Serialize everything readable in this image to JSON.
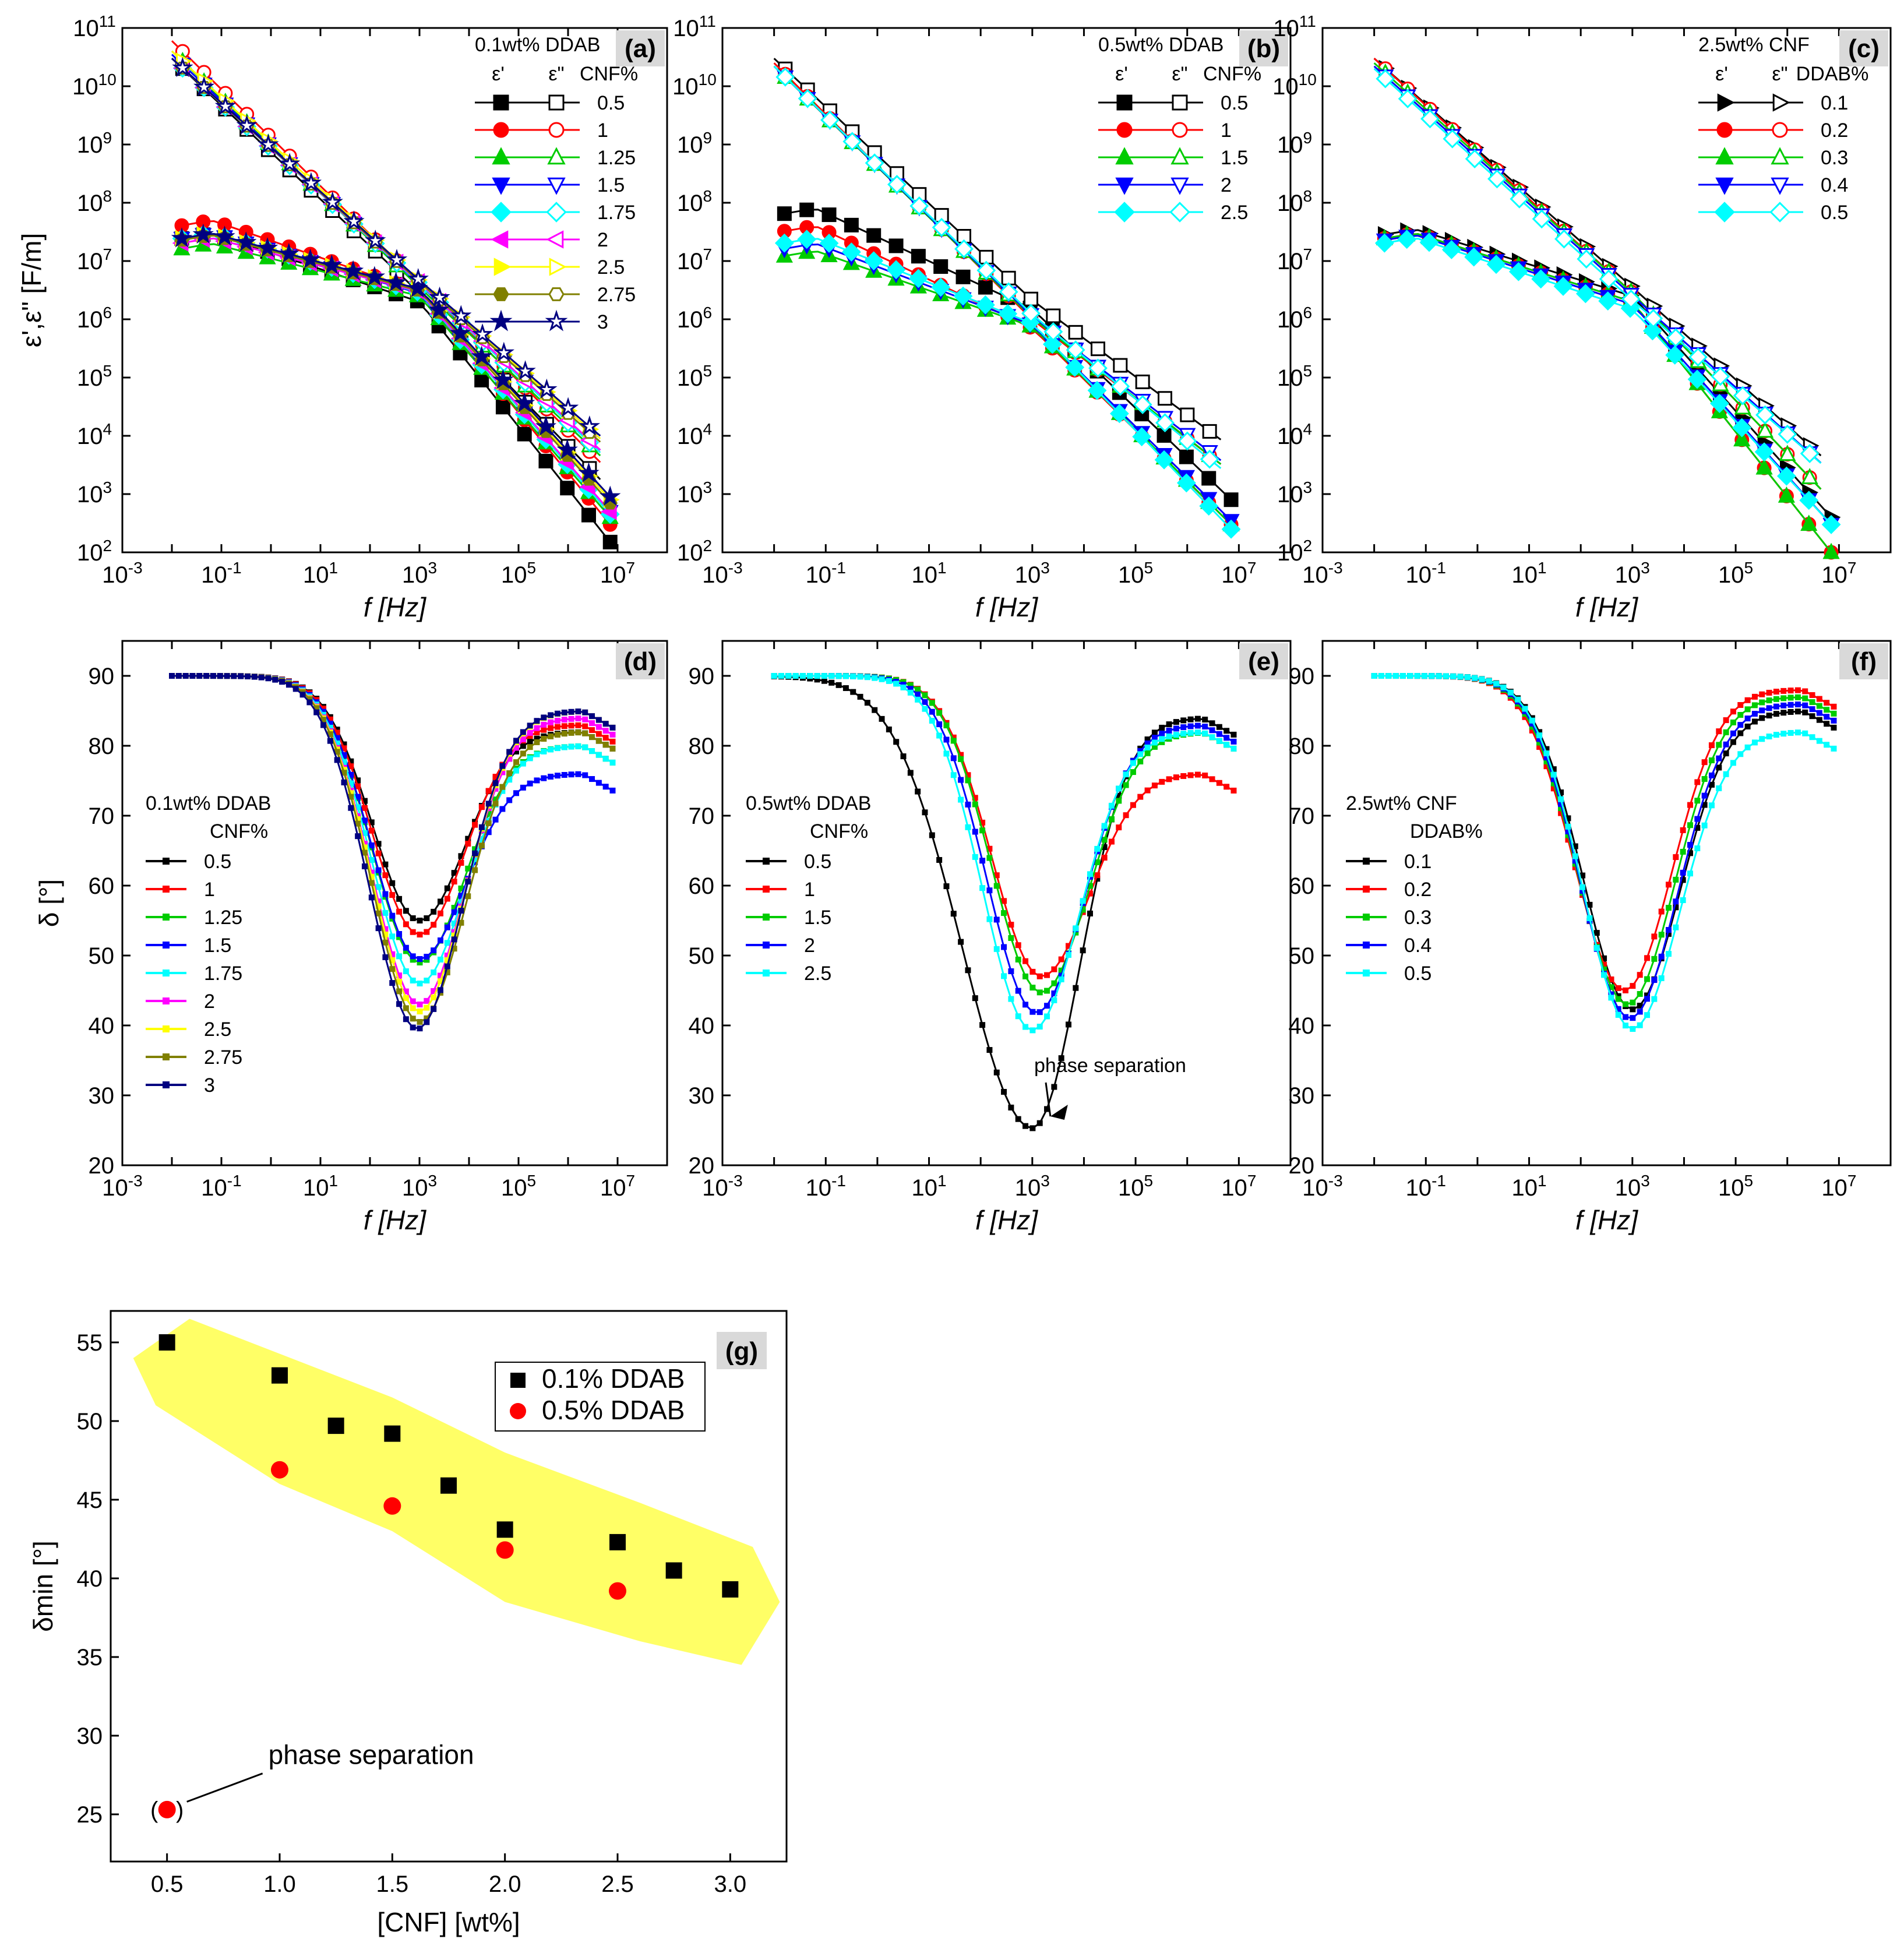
{
  "figure": {
    "phase_separation_label": "phase separation",
    "ylabel_eps": "ε',ε\" [F/m]",
    "ylabel_delta": "δ [°]",
    "xlabel": "f [Hz]"
  },
  "chart_data": [
    {
      "id": "a",
      "type": "line",
      "label": "(a)",
      "x_scale": "log",
      "y_scale": "log",
      "xlim": [
        0.001,
        100000000
      ],
      "ylim": [
        100,
        100000000000
      ],
      "xlabel": "f [Hz]",
      "ylabel": "ε',ε\" [F/m]",
      "legend_title": "0.1wt% DDAB",
      "legend_headers": [
        "ε'",
        "ε\"",
        "CNF%"
      ],
      "series": [
        {
          "name": "0.5",
          "color": "#000000",
          "mk": "square",
          "ep_lo": 2000000,
          "ep_hi": 30000000,
          "epp": 30000000000,
          "ep_end": 150
        },
        {
          "name": "1",
          "color": "#ff0000",
          "mk": "circle",
          "ep_lo": 3000000,
          "ep_hi": 50000000,
          "epp": 60000000000,
          "ep_end": 300
        },
        {
          "name": "1.25",
          "color": "#00cc00",
          "mk": "triangle",
          "ep_lo": 2500000,
          "ep_hi": 20000000,
          "epp": 40000000000,
          "ep_end": 400
        },
        {
          "name": "1.5",
          "color": "#0000ff",
          "mk": "tri_down",
          "ep_lo": 2800000,
          "ep_hi": 30000000,
          "epp": 35000000000,
          "ep_end": 500
        },
        {
          "name": "1.75",
          "color": "#00ffff",
          "mk": "diamond",
          "ep_lo": 2900000,
          "ep_hi": 30000000,
          "epp": 30000000000,
          "ep_end": 450
        },
        {
          "name": "2",
          "color": "#ff00ff",
          "mk": "tri_left",
          "ep_lo": 3000000,
          "ep_hi": 25000000,
          "epp": 30000000000,
          "ep_end": 500
        },
        {
          "name": "2.5",
          "color": "#ffff00",
          "mk": "tri_right",
          "ep_lo": 3200000,
          "ep_hi": 30000000,
          "epp": 40000000000,
          "ep_end": 800
        },
        {
          "name": "2.75",
          "color": "#808000",
          "mk": "hexagon",
          "ep_lo": 3100000,
          "ep_hi": 28000000,
          "epp": 30000000000,
          "ep_end": 700
        },
        {
          "name": "3",
          "color": "#000080",
          "mk": "star",
          "ep_lo": 3300000,
          "ep_hi": 30000000,
          "epp": 30000000000,
          "ep_end": 900
        }
      ]
    },
    {
      "id": "b",
      "type": "line",
      "label": "(b)",
      "x_scale": "log",
      "y_scale": "log",
      "xlim": [
        0.001,
        100000000
      ],
      "ylim": [
        100,
        100000000000
      ],
      "xlabel": "f [Hz]",
      "legend_title": "0.5wt% DDAB",
      "legend_headers": [
        "ε'",
        "ε\"",
        "CNF%"
      ],
      "series": [
        {
          "name": "0.5",
          "color": "#000000",
          "mk": "square",
          "ep_lo": 1500000,
          "ep_hi": 80000000,
          "epp": 30000000000,
          "ep_end": 800
        },
        {
          "name": "1",
          "color": "#ff0000",
          "mk": "circle",
          "ep_lo": 700000,
          "ep_hi": 40000000,
          "epp": 25000000000,
          "ep_end": 300
        },
        {
          "name": "1.5",
          "color": "#00cc00",
          "mk": "triangle",
          "ep_lo": 750000,
          "ep_hi": 15000000,
          "epp": 22000000000,
          "ep_end": 300
        },
        {
          "name": "2",
          "color": "#0000ff",
          "mk": "tri_down",
          "ep_lo": 800000,
          "ep_hi": 20000000,
          "epp": 22000000000,
          "ep_end": 350
        },
        {
          "name": "2.5",
          "color": "#00ffff",
          "mk": "diamond",
          "ep_lo": 850000,
          "ep_hi": 25000000,
          "epp": 22000000000,
          "ep_end": 250
        }
      ]
    },
    {
      "id": "c",
      "type": "line",
      "label": "(c)",
      "x_scale": "log",
      "y_scale": "log",
      "xlim": [
        0.001,
        100000000
      ],
      "ylim": [
        100,
        100000000000
      ],
      "xlabel": "f [Hz]",
      "legend_title": "2.5wt% CNF",
      "legend_headers": [
        "ε'",
        "ε\"",
        "DDAB%"
      ],
      "series": [
        {
          "name": "0.1",
          "color": "#000000",
          "mk": "tri_right",
          "ep_lo": 2500000,
          "ep_hi": 35000000,
          "epp": 30000000000,
          "ep_end": 400
        },
        {
          "name": "0.2",
          "color": "#ff0000",
          "mk": "circle",
          "ep_lo": 2000000,
          "ep_hi": 30000000,
          "epp": 30000000000,
          "ep_end": 100
        },
        {
          "name": "0.3",
          "color": "#00cc00",
          "mk": "triangle",
          "ep_lo": 2000000,
          "ep_hi": 30000000,
          "epp": 25000000000,
          "ep_end": 100
        },
        {
          "name": "0.4",
          "color": "#0000ff",
          "mk": "tri_down",
          "ep_lo": 1800000,
          "ep_hi": 28000000,
          "epp": 22000000000,
          "ep_end": 300
        },
        {
          "name": "0.5",
          "color": "#00ffff",
          "mk": "diamond",
          "ep_lo": 1500000,
          "ep_hi": 25000000,
          "epp": 20000000000,
          "ep_end": 300
        }
      ]
    },
    {
      "id": "d",
      "type": "line",
      "label": "(d)",
      "x_scale": "log",
      "xlim": [
        0.001,
        100000000
      ],
      "ylim": [
        20,
        95
      ],
      "xlabel": "f [Hz]",
      "ylabel": "δ [°]",
      "legend_title": "0.1wt% DDAB",
      "legend_sub": "CNF%",
      "series": [
        {
          "name": "0.5",
          "color": "#000000",
          "min": 55,
          "f_min": 1000,
          "hf": 82
        },
        {
          "name": "1",
          "color": "#ff0000",
          "min": 53,
          "f_min": 1000,
          "hf": 83
        },
        {
          "name": "1.25",
          "color": "#00cc00",
          "min": 49,
          "f_min": 1000,
          "hf": 80
        },
        {
          "name": "1.5",
          "color": "#0000ff",
          "min": 49.5,
          "f_min": 1000,
          "hf": 76
        },
        {
          "name": "1.75",
          "color": "#00ffff",
          "min": 46,
          "f_min": 1000,
          "hf": 80
        },
        {
          "name": "2",
          "color": "#ff00ff",
          "min": 43,
          "f_min": 1000,
          "hf": 84
        },
        {
          "name": "2.5",
          "color": "#ffff00",
          "min": 42,
          "f_min": 1000,
          "hf": 85
        },
        {
          "name": "2.75",
          "color": "#808000",
          "min": 40.5,
          "f_min": 1000,
          "hf": 82
        },
        {
          "name": "3",
          "color": "#000080",
          "min": 39.5,
          "f_min": 900,
          "hf": 85
        }
      ]
    },
    {
      "id": "e",
      "type": "line",
      "label": "(e)",
      "x_scale": "log",
      "xlim": [
        0.001,
        100000000
      ],
      "ylim": [
        20,
        95
      ],
      "xlabel": "f [Hz]",
      "legend_title": "0.5wt% DDAB",
      "legend_sub": "CNF%",
      "annotation": "phase separation",
      "series": [
        {
          "name": "0.5",
          "color": "#000000",
          "min": 25.3,
          "f_min": 1000,
          "hf": 84
        },
        {
          "name": "1",
          "color": "#ff0000",
          "min": 47,
          "f_min": 1500,
          "hf": 76
        },
        {
          "name": "1.5",
          "color": "#00cc00",
          "min": 44.7,
          "f_min": 1500,
          "hf": 82
        },
        {
          "name": "2",
          "color": "#0000ff",
          "min": 41.8,
          "f_min": 1200,
          "hf": 83
        },
        {
          "name": "2.5",
          "color": "#00ffff",
          "min": 39.3,
          "f_min": 1000,
          "hf": 82
        }
      ]
    },
    {
      "id": "f",
      "type": "line",
      "label": "(f)",
      "x_scale": "log",
      "xlim": [
        0.001,
        100000000
      ],
      "ylim": [
        20,
        95
      ],
      "xlabel": "f [Hz]",
      "legend_title": "2.5wt% CNF",
      "legend_sub": "DDAB%",
      "series": [
        {
          "name": "0.1",
          "color": "#000000",
          "min": 42.3,
          "f_min": 1000,
          "hf": 85
        },
        {
          "name": "0.2",
          "color": "#ff0000",
          "min": 45,
          "f_min": 700,
          "hf": 88
        },
        {
          "name": "0.3",
          "color": "#00cc00",
          "min": 43,
          "f_min": 800,
          "hf": 87
        },
        {
          "name": "0.4",
          "color": "#0000ff",
          "min": 41,
          "f_min": 900,
          "hf": 86
        },
        {
          "name": "0.5",
          "color": "#00ffff",
          "min": 39.5,
          "f_min": 1000,
          "hf": 82
        }
      ]
    },
    {
      "id": "g",
      "type": "scatter",
      "label": "(g)",
      "xlim": [
        0.25,
        3.25
      ],
      "ylim": [
        22,
        57
      ],
      "xlabel": "[CNF] [wt%]",
      "ylabel": "δmin [°]",
      "annotation": "phase separation",
      "series": [
        {
          "name": "0.1% DDAB",
          "color": "#000000",
          "marker": "square",
          "x": [
            0.5,
            1.0,
            1.25,
            1.5,
            1.75,
            2.0,
            2.5,
            2.75,
            3.0
          ],
          "y": [
            55.0,
            52.9,
            49.7,
            49.2,
            45.9,
            43.1,
            42.3,
            40.5,
            39.3
          ]
        },
        {
          "name": "0.5% DDAB",
          "color": "#ff0000",
          "marker": "circle",
          "x": [
            0.5,
            1.0,
            1.5,
            2.0,
            2.5
          ],
          "y": [
            25.3,
            46.9,
            44.6,
            41.8,
            39.2
          ]
        }
      ]
    }
  ]
}
